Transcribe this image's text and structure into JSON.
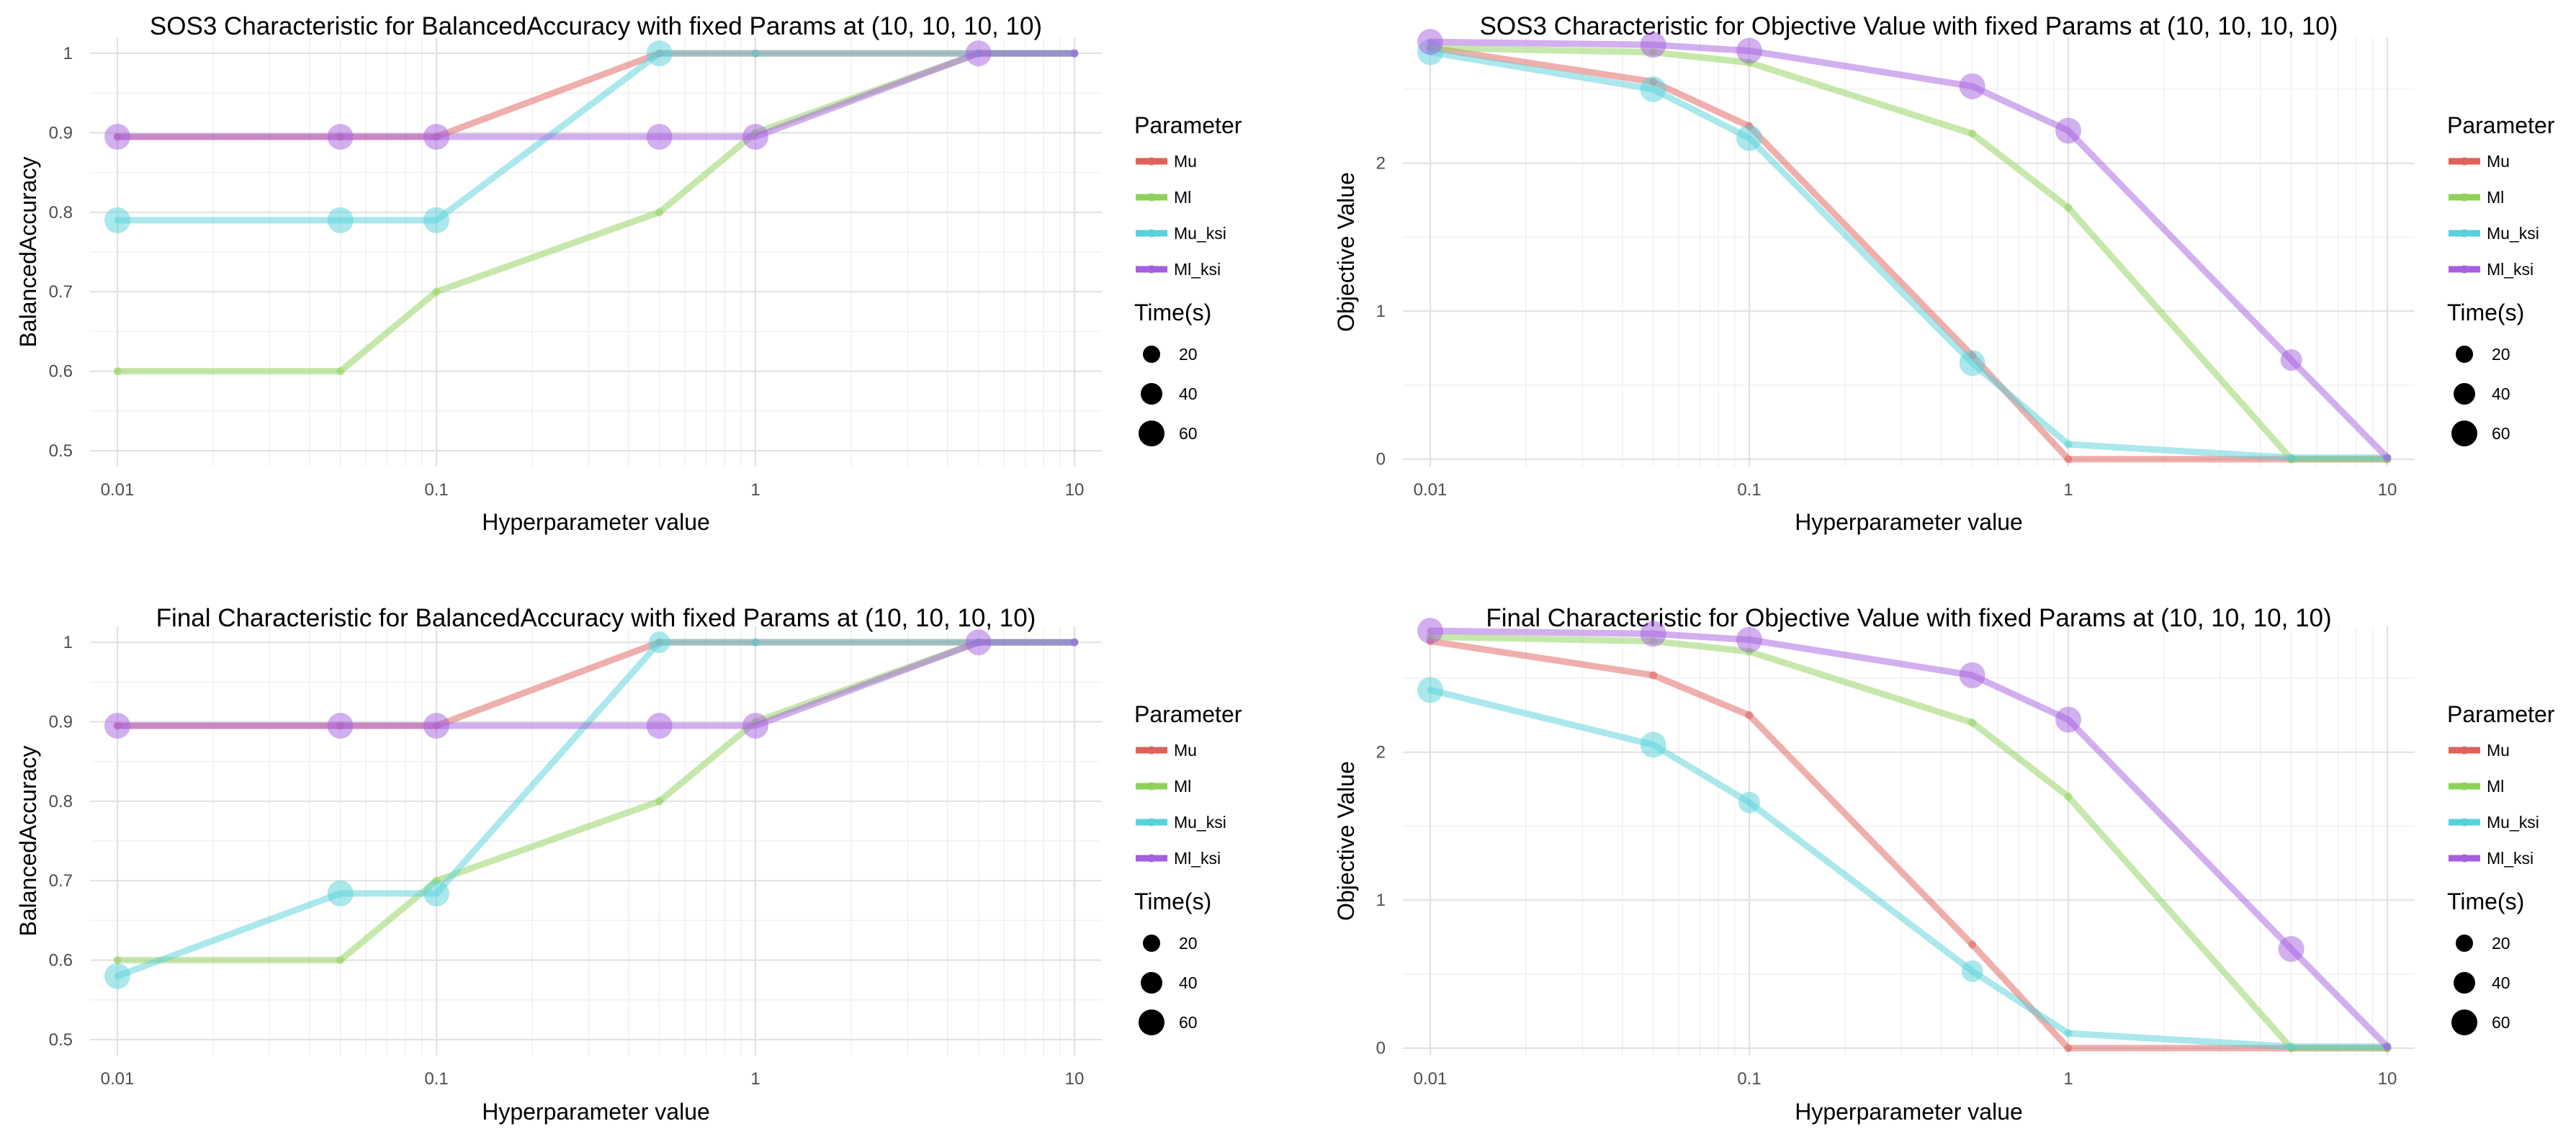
{
  "legend": {
    "parameter_title": "Parameter",
    "time_title": "Time(s)",
    "parameter_entries": [
      "Mu",
      "Ml",
      "Mu_ksi",
      "Ml_ksi"
    ],
    "time_entries": [
      "20",
      "40",
      "60"
    ]
  },
  "colors": {
    "Mu": "#E0605A",
    "Ml": "#8FD25A",
    "Mu_ksi": "#56D2DA",
    "Ml_ksi": "#A55FE0"
  },
  "chart_data": [
    {
      "type": "line",
      "title": "SOS3 Characteristic for BalancedAccuracy with fixed Params at (10, 10, 10, 10)",
      "xlabel": "Hyperparameter value",
      "ylabel": "BalancedAccuracy",
      "x_scale": "log",
      "x": [
        0.01,
        0.05,
        0.1,
        0.5,
        1,
        5,
        10
      ],
      "x_ticks": [
        "0.01",
        "0.1",
        "1",
        "10"
      ],
      "y_ticks": [
        "0.5",
        "0.6",
        "0.7",
        "0.8",
        "0.9",
        "1"
      ],
      "ylim": [
        0.48,
        1.02
      ],
      "grid": true,
      "legend_position": "right",
      "series": [
        {
          "name": "Mu",
          "values": [
            0.895,
            0.895,
            0.895,
            1.0,
            1.0,
            1.0,
            1.0
          ],
          "sizes": [
            0,
            0,
            0,
            0,
            0,
            0,
            0
          ]
        },
        {
          "name": "Ml",
          "values": [
            0.6,
            0.6,
            0.7,
            0.8,
            0.9,
            1.0,
            1.0
          ],
          "sizes": [
            0,
            0,
            0,
            0,
            0,
            0,
            0
          ]
        },
        {
          "name": "Mu_ksi",
          "values": [
            0.79,
            0.79,
            0.79,
            1.0,
            1.0,
            1.0,
            1.0
          ],
          "sizes": [
            60,
            60,
            60,
            60,
            0,
            0,
            0
          ]
        },
        {
          "name": "Ml_ksi",
          "values": [
            0.895,
            0.895,
            0.895,
            0.895,
            0.895,
            1.0,
            1.0
          ],
          "sizes": [
            60,
            60,
            60,
            60,
            60,
            60,
            0
          ]
        }
      ]
    },
    {
      "type": "line",
      "title": "SOS3 Characteristic for Objective Value with fixed Params at (10, 10, 10, 10)",
      "xlabel": "Hyperparameter value",
      "ylabel": "Objective Value",
      "x_scale": "log",
      "x": [
        0.01,
        0.05,
        0.1,
        0.5,
        1,
        5,
        10
      ],
      "x_ticks": [
        "0.01",
        "0.1",
        "1",
        "10"
      ],
      "y_ticks": [
        "0",
        "1",
        "2"
      ],
      "ylim": [
        -0.05,
        2.85
      ],
      "grid": true,
      "legend_position": "right",
      "series": [
        {
          "name": "Mu",
          "values": [
            2.78,
            2.55,
            2.25,
            0.7,
            0.0,
            0.0,
            0.0
          ],
          "sizes": [
            0,
            0,
            0,
            0,
            0,
            0,
            0
          ]
        },
        {
          "name": "Ml",
          "values": [
            2.78,
            2.75,
            2.68,
            2.2,
            1.7,
            0.0,
            0.0
          ],
          "sizes": [
            0,
            0,
            0,
            0,
            0,
            0,
            0
          ]
        },
        {
          "name": "Mu_ksi",
          "values": [
            2.75,
            2.5,
            2.17,
            0.65,
            0.1,
            0.01,
            0.01
          ],
          "sizes": [
            60,
            60,
            60,
            60,
            0,
            0,
            0
          ]
        },
        {
          "name": "Ml_ksi",
          "values": [
            2.82,
            2.8,
            2.76,
            2.52,
            2.22,
            0.67,
            0.01
          ],
          "sizes": [
            60,
            60,
            60,
            60,
            60,
            40,
            0
          ]
        }
      ]
    },
    {
      "type": "line",
      "title": "Final Characteristic for BalancedAccuracy with fixed Params at (10, 10, 10, 10)",
      "xlabel": "Hyperparameter value",
      "ylabel": "BalancedAccuracy",
      "x_scale": "log",
      "x": [
        0.01,
        0.05,
        0.1,
        0.5,
        1,
        5,
        10
      ],
      "x_ticks": [
        "0.01",
        "0.1",
        "1",
        "10"
      ],
      "y_ticks": [
        "0.5",
        "0.6",
        "0.7",
        "0.8",
        "0.9",
        "1"
      ],
      "ylim": [
        0.48,
        1.02
      ],
      "grid": true,
      "legend_position": "right",
      "series": [
        {
          "name": "Mu",
          "values": [
            0.895,
            0.895,
            0.895,
            1.0,
            1.0,
            1.0,
            1.0
          ],
          "sizes": [
            0,
            0,
            0,
            0,
            0,
            0,
            0
          ]
        },
        {
          "name": "Ml",
          "values": [
            0.6,
            0.6,
            0.7,
            0.8,
            0.9,
            1.0,
            1.0
          ],
          "sizes": [
            0,
            0,
            0,
            0,
            0,
            0,
            0
          ]
        },
        {
          "name": "Mu_ksi",
          "values": [
            0.58,
            0.684,
            0.684,
            1.0,
            1.0,
            1.0,
            1.0
          ],
          "sizes": [
            60,
            60,
            60,
            40,
            0,
            0,
            0
          ]
        },
        {
          "name": "Ml_ksi",
          "values": [
            0.895,
            0.895,
            0.895,
            0.895,
            0.895,
            1.0,
            1.0
          ],
          "sizes": [
            60,
            60,
            60,
            60,
            60,
            60,
            0
          ]
        }
      ]
    },
    {
      "type": "line",
      "title": "Final Characteristic for Objective Value with fixed Params at (10, 10, 10, 10)",
      "xlabel": "Hyperparameter value",
      "ylabel": "Objective Value",
      "x_scale": "log",
      "x": [
        0.01,
        0.05,
        0.1,
        0.5,
        1,
        5,
        10
      ],
      "x_ticks": [
        "0.01",
        "0.1",
        "1",
        "10"
      ],
      "y_ticks": [
        "0",
        "1",
        "2"
      ],
      "ylim": [
        -0.05,
        2.85
      ],
      "grid": true,
      "legend_position": "right",
      "series": [
        {
          "name": "Mu",
          "values": [
            2.75,
            2.52,
            2.25,
            0.7,
            0.0,
            0.0,
            0.0
          ],
          "sizes": [
            0,
            0,
            0,
            0,
            0,
            0,
            0
          ]
        },
        {
          "name": "Ml",
          "values": [
            2.78,
            2.75,
            2.68,
            2.2,
            1.7,
            0.0,
            0.0
          ],
          "sizes": [
            0,
            0,
            0,
            0,
            0,
            0,
            0
          ]
        },
        {
          "name": "Mu_ksi",
          "values": [
            2.42,
            2.05,
            1.66,
            0.52,
            0.1,
            0.01,
            0.01
          ],
          "sizes": [
            60,
            60,
            40,
            40,
            0,
            0,
            0
          ]
        },
        {
          "name": "Ml_ksi",
          "values": [
            2.82,
            2.8,
            2.76,
            2.52,
            2.22,
            0.67,
            0.01
          ],
          "sizes": [
            60,
            60,
            60,
            60,
            60,
            60,
            0
          ]
        }
      ]
    }
  ]
}
